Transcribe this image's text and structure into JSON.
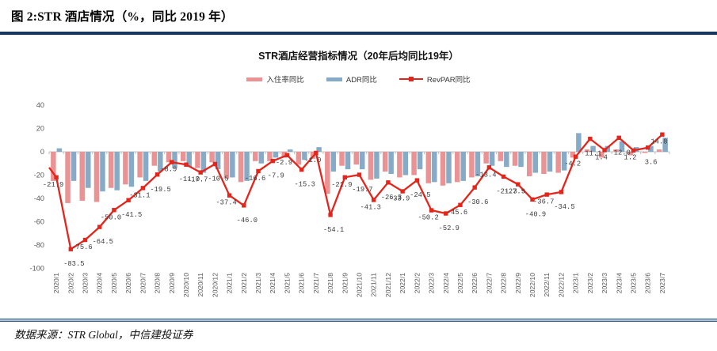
{
  "figure": {
    "caption": "图 2:STR 酒店情况（%，同比 2019 年）",
    "source": "数据来源：STR Global，中信建投证券"
  },
  "colors": {
    "top_rule": "#17375e",
    "bottom_rule": "#2e5a88",
    "axis_text": "#595959",
    "data_label_text": "#3d3d3d",
    "zero_axis": "#bfbfbf"
  },
  "chart_data": {
    "type": "combo (bar + line)",
    "title": "STR酒店经营指标情况（20年后均同比19年）",
    "legend_position": "top",
    "grid": false,
    "ylim": [
      -100,
      40
    ],
    "yticks": [
      40,
      20,
      0,
      -20,
      -40,
      -60,
      -80,
      -100
    ],
    "categories": [
      "2020/1",
      "2020/2",
      "2020/3",
      "2020/4",
      "2020/5",
      "2020/6",
      "2020/7",
      "2020/8",
      "2020/9",
      "2020/10",
      "2020/11",
      "2020/12",
      "2021/1",
      "2021/2",
      "2021/3",
      "2021/4",
      "2021/5",
      "2021/6",
      "2021/7",
      "2021/8",
      "2021/9",
      "2021/10",
      "2021/11",
      "2021/12",
      "2022/1",
      "2022/2",
      "2022/3",
      "2022/4",
      "2022/5",
      "2022/6",
      "2022/7",
      "2022/8",
      "2022/9",
      "2022/10",
      "2022/11",
      "2022/12",
      "2023/1",
      "2023/2",
      "2023/3",
      "2023/4",
      "2023/5",
      "2023/6",
      "2023/7"
    ],
    "series": [
      {
        "name": "入住率同比",
        "type": "bar",
        "color": "#ea9394",
        "values_estimated": true,
        "values": [
          -25,
          -44,
          -42,
          -43,
          -31,
          -28,
          -22,
          -12,
          -9,
          -8,
          -14,
          -9,
          -23,
          -26,
          -8,
          -8,
          -5,
          -11,
          -6,
          -36,
          -12,
          -11,
          -24,
          -17,
          -22,
          -20,
          -27,
          -29,
          -26,
          -22,
          -10,
          -8,
          -12,
          -21,
          -19,
          -18,
          -5,
          2,
          -5,
          2,
          -3,
          -1,
          2
        ]
      },
      {
        "name": "ADR同比",
        "type": "bar",
        "color": "#87abc7",
        "values_estimated": true,
        "values": [
          3,
          -25,
          -31,
          -34,
          -33,
          -30,
          -25,
          -17,
          -14,
          -13,
          -18,
          -15,
          -22,
          -25,
          -10,
          -5,
          2,
          -7,
          4,
          -17,
          -15,
          -15,
          -23,
          -19,
          -20,
          -15,
          -26,
          -27,
          -25,
          -21,
          -12,
          -13,
          -13,
          -18,
          -17,
          -16,
          16,
          5,
          5,
          9,
          4,
          5,
          12
        ]
      },
      {
        "name": "RevPAR同比",
        "type": "line",
        "color": "#e3251b",
        "labels_shown": true,
        "values": [
          -21.9,
          -83.5,
          -75.6,
          -64.5,
          -50.0,
          -41.5,
          -31.1,
          -19.5,
          -8.9,
          -11.0,
          -17.7,
          -10.5,
          -37.4,
          -46.0,
          -16.6,
          -7.9,
          -2.9,
          -15.3,
          -1.0,
          -54.1,
          -21.9,
          -19.7,
          -41.3,
          -26.3,
          -33.9,
          -24.5,
          -50.2,
          -52.9,
          -45.6,
          -30.6,
          -13.4,
          -21.3,
          -27.9,
          -40.9,
          -36.7,
          -34.5,
          -4.2,
          11.1,
          1.4,
          12.0,
          1.2,
          3.6,
          14.8
        ]
      }
    ],
    "line_lead_in_value_at_left_edge": -13.5
  }
}
